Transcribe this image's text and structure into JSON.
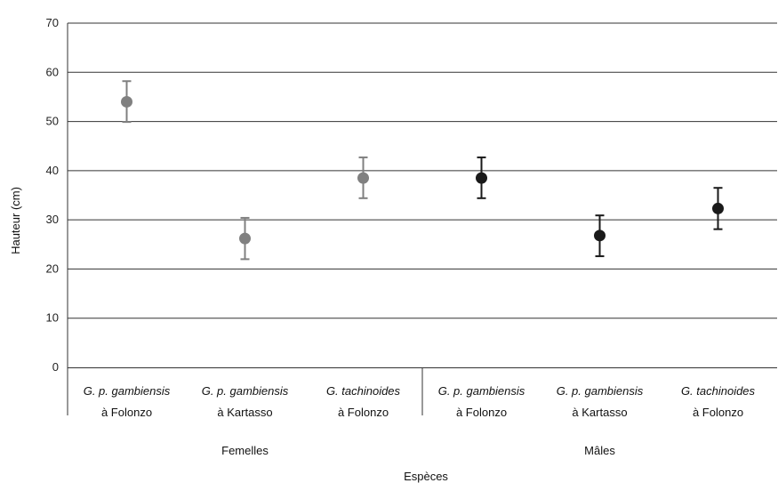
{
  "chart_data": {
    "type": "scatter",
    "ylabel": "Hauteur (cm)",
    "xlabel": "Espèces",
    "ylim": [
      0,
      70
    ],
    "yticks": [
      0,
      10,
      20,
      30,
      40,
      50,
      60,
      70
    ],
    "grid": "horizontal",
    "categories": [
      {
        "line1": "G. p. gambiensis",
        "line2": "à  Folonzo"
      },
      {
        "line1": "G. p. gambiensis",
        "line2": "à Kartasso"
      },
      {
        "line1": "G. tachinoides",
        "line2": "à  Folonzo"
      },
      {
        "line1": "G. p. gambiensis",
        "line2": "à  Folonzo"
      },
      {
        "line1": "G. p. gambiensis",
        "line2": "à Kartasso"
      },
      {
        "line1": "G. tachinoides",
        "line2": "à  Folonzo"
      }
    ],
    "groups": [
      {
        "label": "Femelles",
        "color": "#808080",
        "category_indices": [
          0,
          1,
          2
        ]
      },
      {
        "label": "Mâles",
        "color": "#1a1a1a",
        "category_indices": [
          3,
          4,
          5
        ]
      }
    ],
    "points": [
      {
        "category": 0,
        "mean": 54.0,
        "low": 49.9,
        "high": 58.2
      },
      {
        "category": 1,
        "mean": 26.2,
        "low": 22.0,
        "high": 30.4
      },
      {
        "category": 2,
        "mean": 38.5,
        "low": 34.4,
        "high": 42.7
      },
      {
        "category": 3,
        "mean": 38.5,
        "low": 34.4,
        "high": 42.7
      },
      {
        "category": 4,
        "mean": 26.8,
        "low": 22.6,
        "high": 30.9
      },
      {
        "category": 5,
        "mean": 32.3,
        "low": 28.1,
        "high": 36.5
      }
    ]
  }
}
